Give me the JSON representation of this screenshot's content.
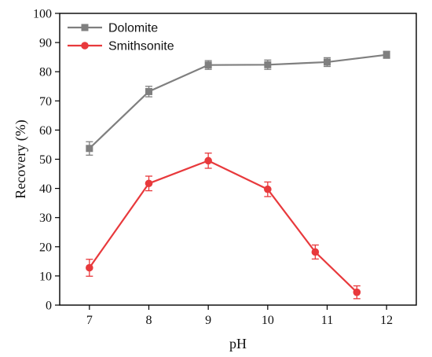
{
  "chart_data": {
    "type": "line",
    "title": "",
    "xlabel": "pH",
    "ylabel": "Recovery (%)",
    "xlim": [
      6.5,
      12.5
    ],
    "ylim": [
      0,
      100
    ],
    "x_ticks": [
      7,
      8,
      9,
      10,
      11,
      12
    ],
    "y_ticks": [
      0,
      10,
      20,
      30,
      40,
      50,
      60,
      70,
      80,
      90,
      100
    ],
    "grid": false,
    "legend_position": "top-left",
    "series": [
      {
        "name": "Dolomite",
        "color": "#7f7f7f",
        "marker": "square",
        "x": [
          7,
          8,
          9,
          10,
          11,
          12
        ],
        "y": [
          53.7,
          73.2,
          82.3,
          82.4,
          83.3,
          85.8
        ],
        "error": [
          2.3,
          1.8,
          1.5,
          1.6,
          1.5,
          1.2
        ]
      },
      {
        "name": "Smithsonite",
        "color": "#e8393c",
        "marker": "circle",
        "x": [
          7,
          8,
          9,
          10,
          10.8,
          11.5
        ],
        "y": [
          12.8,
          41.7,
          49.5,
          39.7,
          18.2,
          4.4
        ],
        "error": [
          2.9,
          2.5,
          2.6,
          2.5,
          2.4,
          2.2
        ]
      }
    ]
  }
}
